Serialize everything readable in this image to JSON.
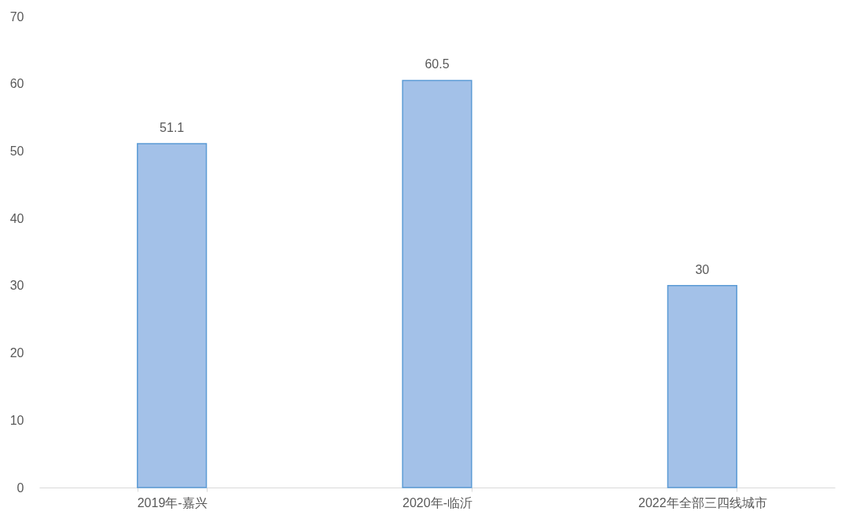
{
  "chart_data": {
    "type": "bar",
    "categories": [
      "2019年-嘉兴",
      "2020年-临沂",
      "2022年全部三四线城市"
    ],
    "values": [
      51.1,
      60.5,
      30
    ],
    "color": "#a3c1e8",
    "ylim": [
      0,
      70
    ],
    "yticks": [
      0,
      10,
      20,
      30,
      40,
      50,
      60,
      70
    ],
    "grid": false,
    "data_labels": true
  }
}
